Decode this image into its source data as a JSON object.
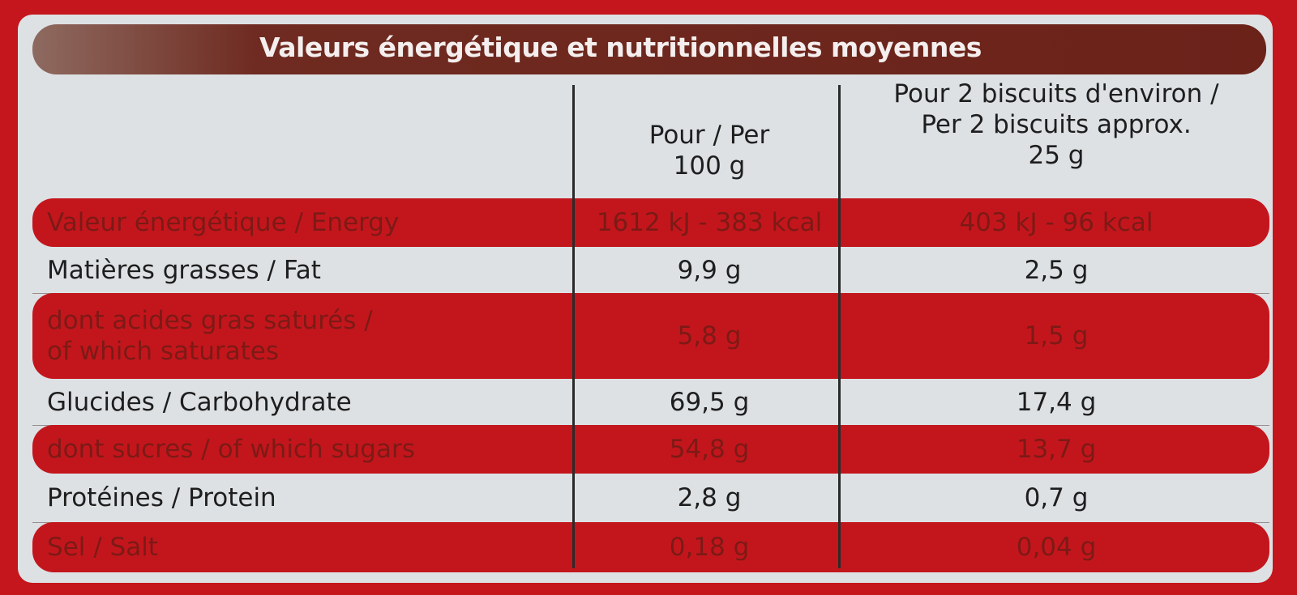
{
  "header": {
    "title": "Valeurs énergétique et nutritionnelles moyennes"
  },
  "table": {
    "columns": [
      [
        "Pour / Per",
        "100 g"
      ],
      [
        "Pour 2 biscuits d'environ /",
        "Per 2 biscuits approx.",
        "25 g"
      ]
    ],
    "rows": [
      {
        "label": [
          "Valeur énergétique / Energy"
        ],
        "values": [
          "1612 kJ - 383 kcal",
          "403 kJ - 96 kcal"
        ],
        "shaded": true
      },
      {
        "label": [
          "Matières grasses / Fat"
        ],
        "values": [
          "9,9 g",
          "2,5 g"
        ],
        "shaded": false
      },
      {
        "label": [
          "dont acides gras saturés /",
          "of which saturates"
        ],
        "values": [
          "5,8 g",
          "1,5 g"
        ],
        "shaded": true
      },
      {
        "label": [
          "Glucides / Carbohydrate"
        ],
        "values": [
          "69,5 g",
          "17,4 g"
        ],
        "shaded": false
      },
      {
        "label": [
          "dont sucres / of which sugars"
        ],
        "values": [
          "54,8 g",
          "13,7 g"
        ],
        "shaded": true
      },
      {
        "label": [
          "Protéines / Protein"
        ],
        "values": [
          "2,8 g",
          "0,7 g"
        ],
        "shaded": false
      },
      {
        "label": [
          "Sel / Salt"
        ],
        "values": [
          "0,18 g",
          "0,04 g"
        ],
        "shaded": true
      }
    ]
  }
}
